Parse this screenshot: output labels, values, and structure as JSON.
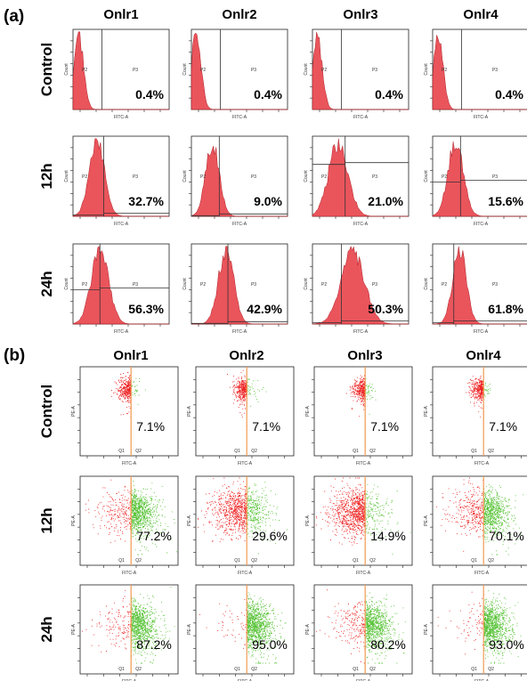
{
  "panels": [
    {
      "label": "(a)",
      "columns": [
        "Onlr1",
        "Onlr2",
        "Onlr3",
        "Onlr4"
      ],
      "rows": [
        "Control",
        "12h",
        "24h"
      ]
    },
    {
      "label": "(b)",
      "columns": [
        "Onlr1",
        "Onlr2",
        "Onlr3",
        "Onlr4"
      ],
      "rows": [
        "Control",
        "12h",
        "24h"
      ]
    }
  ],
  "colors": {
    "histogram": "#e8434a",
    "negative": "#ee2222",
    "positive": "#55c234",
    "gate": "#f29a52"
  },
  "chart_data": [
    {
      "type": "histogram",
      "panel": "(a)",
      "xlabel": "FITC-A",
      "ylabel": "Count",
      "gates": [
        "P2",
        "P3"
      ],
      "categories": [
        "Control",
        "12h",
        "24h"
      ],
      "series": [
        {
          "name": "Onlr1",
          "values": [
            0.4,
            32.7,
            56.3
          ],
          "labels": [
            "0.4%",
            "32.7%",
            "56.3%"
          ]
        },
        {
          "name": "Onlr2",
          "values": [
            0.4,
            9.0,
            42.9
          ],
          "labels": [
            "0.4%",
            "9.0%",
            "42.9%"
          ]
        },
        {
          "name": "Onlr3",
          "values": [
            0.4,
            21.0,
            50.3
          ],
          "labels": [
            "0.4%",
            "21.0%",
            "50.3%"
          ]
        },
        {
          "name": "Onlr4",
          "values": [
            0.4,
            15.6,
            61.8
          ],
          "labels": [
            "0.4%",
            "15.6%",
            "61.8%"
          ]
        }
      ],
      "unit": "%"
    },
    {
      "type": "scatter",
      "panel": "(b)",
      "xlabel": "FITC-A",
      "ylabel": "PE-A",
      "quadrants": [
        "Q1",
        "Q2"
      ],
      "categories": [
        "Control",
        "12h",
        "24h"
      ],
      "series": [
        {
          "name": "Onlr1",
          "values": [
            7.1,
            77.2,
            87.2
          ],
          "labels": [
            "7.1%",
            "77.2%",
            "87.2%"
          ]
        },
        {
          "name": "Onlr2",
          "values": [
            7.1,
            29.6,
            95.0
          ],
          "labels": [
            "7.1%",
            "29.6%",
            "95.0%"
          ]
        },
        {
          "name": "Onlr3",
          "values": [
            7.1,
            14.9,
            80.2
          ],
          "labels": [
            "7.1%",
            "14.9%",
            "80.2%"
          ]
        },
        {
          "name": "Onlr4",
          "values": [
            7.1,
            70.1,
            93.0
          ],
          "labels": [
            "7.1%",
            "70.1%",
            "93.0%"
          ]
        }
      ],
      "unit": "%"
    }
  ]
}
